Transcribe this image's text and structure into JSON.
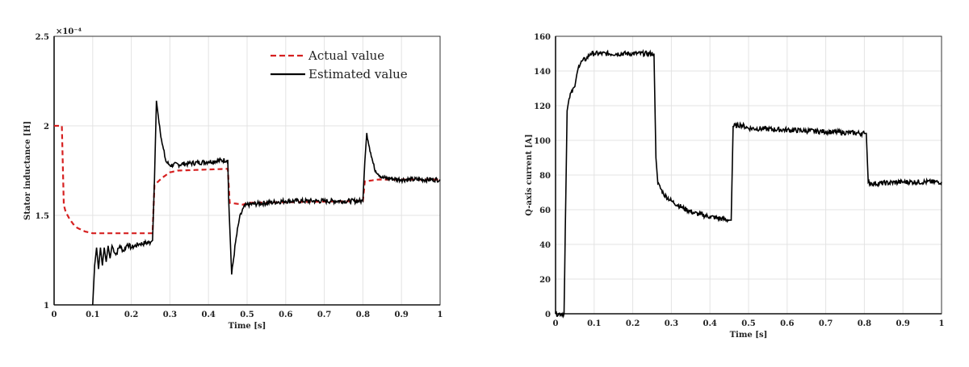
{
  "chart_data": [
    {
      "type": "line",
      "xlabel": "Time [s]",
      "ylabel": "Stator inductance [H]",
      "exponent_label": "×10⁻⁴",
      "xlim": [
        0,
        1
      ],
      "ylim": [
        1,
        2.5
      ],
      "xticks": [
        "0",
        "0.1",
        "0.2",
        "0.3",
        "0.4",
        "0.5",
        "0.6",
        "0.7",
        "0.8",
        "0.9",
        "1"
      ],
      "yticks": [
        "1",
        "1.5",
        "2",
        "2.5"
      ],
      "grid": true,
      "legend_position": "top-right",
      "series": [
        {
          "name": "Actual value",
          "color": "#d62020",
          "style": "dashed",
          "points": [
            [
              0,
              2.0
            ],
            [
              0.02,
              2.0
            ],
            [
              0.025,
              1.56
            ],
            [
              0.03,
              1.52
            ],
            [
              0.04,
              1.48
            ],
            [
              0.05,
              1.45
            ],
            [
              0.06,
              1.43
            ],
            [
              0.08,
              1.41
            ],
            [
              0.1,
              1.4
            ],
            [
              0.255,
              1.4
            ],
            [
              0.26,
              1.67
            ],
            [
              0.28,
              1.71
            ],
            [
              0.3,
              1.74
            ],
            [
              0.32,
              1.75
            ],
            [
              0.45,
              1.76
            ],
            [
              0.455,
              1.57
            ],
            [
              0.49,
              1.56
            ],
            [
              0.5,
              1.57
            ],
            [
              0.8,
              1.58
            ],
            [
              0.805,
              1.69
            ],
            [
              0.84,
              1.7
            ],
            [
              1.0,
              1.7
            ]
          ]
        },
        {
          "name": "Estimated value",
          "color": "#000000",
          "style": "solid",
          "points": [
            [
              0.1,
              1.0
            ],
            [
              0.105,
              1.22
            ],
            [
              0.11,
              1.32
            ],
            [
              0.115,
              1.2
            ],
            [
              0.12,
              1.32
            ],
            [
              0.125,
              1.22
            ],
            [
              0.13,
              1.32
            ],
            [
              0.135,
              1.24
            ],
            [
              0.14,
              1.33
            ],
            [
              0.145,
              1.26
            ],
            [
              0.15,
              1.33
            ],
            [
              0.16,
              1.28
            ],
            [
              0.17,
              1.33
            ],
            [
              0.18,
              1.3
            ],
            [
              0.19,
              1.34
            ],
            [
              0.2,
              1.32
            ],
            [
              0.22,
              1.34
            ],
            [
              0.25,
              1.35
            ],
            [
              0.255,
              1.36
            ],
            [
              0.26,
              1.7
            ],
            [
              0.265,
              2.14
            ],
            [
              0.27,
              2.05
            ],
            [
              0.28,
              1.9
            ],
            [
              0.29,
              1.8
            ],
            [
              0.3,
              1.78
            ],
            [
              0.35,
              1.79
            ],
            [
              0.4,
              1.8
            ],
            [
              0.45,
              1.81
            ],
            [
              0.452,
              1.6
            ],
            [
              0.46,
              1.17
            ],
            [
              0.47,
              1.35
            ],
            [
              0.48,
              1.48
            ],
            [
              0.49,
              1.54
            ],
            [
              0.5,
              1.56
            ],
            [
              0.6,
              1.58
            ],
            [
              0.7,
              1.58
            ],
            [
              0.8,
              1.58
            ],
            [
              0.805,
              1.8
            ],
            [
              0.81,
              1.96
            ],
            [
              0.82,
              1.85
            ],
            [
              0.83,
              1.76
            ],
            [
              0.85,
              1.71
            ],
            [
              0.9,
              1.7
            ],
            [
              1.0,
              1.7
            ]
          ]
        }
      ]
    },
    {
      "type": "line",
      "xlabel": "Time [s]",
      "ylabel": "Q-axis current [A]",
      "xlim": [
        0,
        1
      ],
      "ylim": [
        0,
        160
      ],
      "xticks": [
        "0",
        "0.1",
        "0.2",
        "0.3",
        "0.4",
        "0.5",
        "0.6",
        "0.7",
        "0.8",
        "0.9",
        "1"
      ],
      "yticks": [
        "0",
        "20",
        "40",
        "60",
        "80",
        "100",
        "120",
        "140",
        "160"
      ],
      "grid": true,
      "series": [
        {
          "color": "#000000",
          "style": "solid",
          "points": [
            [
              0,
              0
            ],
            [
              0.022,
              0
            ],
            [
              0.03,
              117
            ],
            [
              0.035,
              124
            ],
            [
              0.045,
              130
            ],
            [
              0.05,
              131
            ],
            [
              0.055,
              138
            ],
            [
              0.06,
              143
            ],
            [
              0.07,
              146
            ],
            [
              0.08,
              147
            ],
            [
              0.09,
              150
            ],
            [
              0.1,
              150
            ],
            [
              0.2,
              150
            ],
            [
              0.255,
              150
            ],
            [
              0.26,
              90
            ],
            [
              0.265,
              75
            ],
            [
              0.28,
              69
            ],
            [
              0.3,
              65
            ],
            [
              0.33,
              61
            ],
            [
              0.36,
              58
            ],
            [
              0.4,
              56
            ],
            [
              0.45,
              54
            ],
            [
              0.455,
              54
            ],
            [
              0.46,
              108
            ],
            [
              0.48,
              109
            ],
            [
              0.5,
              107
            ],
            [
              0.6,
              106
            ],
            [
              0.7,
              105
            ],
            [
              0.8,
              104
            ],
            [
              0.805,
              104
            ],
            [
              0.81,
              76
            ],
            [
              0.82,
              75
            ],
            [
              0.9,
              76
            ],
            [
              1.0,
              76
            ]
          ]
        }
      ]
    }
  ]
}
